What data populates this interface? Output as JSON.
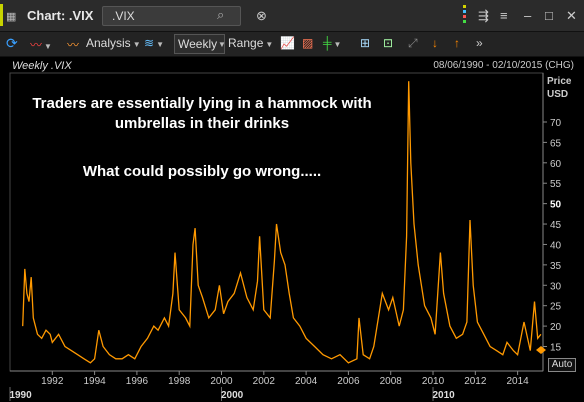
{
  "window": {
    "title": "Chart: .VIX",
    "symbol_value": ".VIX"
  },
  "toolbar": {
    "analysis_label": "Analysis",
    "interval_label": "Weekly",
    "range_label": "Range"
  },
  "chart": {
    "label": "Weekly .VIX",
    "date_range": "08/06/1990 - 02/10/2015 (CHG)",
    "axis_title_line1": "Price",
    "axis_title_line2": "USD",
    "annotation_line1": "Traders are essentially lying in a hammock with",
    "annotation_line2": "umbrellas in their drinks",
    "annotation_line3": "What could possibly go wrong.....",
    "auto_label": "Auto",
    "line_color": "#ff9900"
  },
  "chart_data": {
    "type": "line",
    "series": [
      {
        "name": ".VIX",
        "x": [
          1990.6,
          1990.7,
          1990.8,
          1990.9,
          1991.0,
          1991.1,
          1991.3,
          1991.5,
          1991.7,
          1991.9,
          1992.0,
          1992.3,
          1992.6,
          1992.9,
          1993.2,
          1993.5,
          1993.8,
          1994.0,
          1994.2,
          1994.4,
          1994.7,
          1995.0,
          1995.3,
          1995.6,
          1995.9,
          1996.2,
          1996.5,
          1996.8,
          1997.0,
          1997.3,
          1997.5,
          1997.7,
          1997.8,
          1998.0,
          1998.3,
          1998.5,
          1998.65,
          1998.75,
          1998.9,
          1999.1,
          1999.4,
          1999.7,
          1999.9,
          2000.1,
          2000.3,
          2000.6,
          2000.9,
          2001.2,
          2001.5,
          2001.7,
          2001.8,
          2002.0,
          2002.3,
          2002.5,
          2002.6,
          2002.8,
          2003.0,
          2003.2,
          2003.4,
          2003.7,
          2004.0,
          2004.4,
          2004.8,
          2005.2,
          2005.6,
          2006.0,
          2006.4,
          2006.5,
          2006.7,
          2007.0,
          2007.2,
          2007.6,
          2007.9,
          2008.1,
          2008.4,
          2008.6,
          2008.75,
          2008.85,
          2008.95,
          2009.1,
          2009.3,
          2009.6,
          2009.9,
          2010.1,
          2010.35,
          2010.5,
          2010.8,
          2011.1,
          2011.4,
          2011.6,
          2011.75,
          2011.9,
          2012.1,
          2012.4,
          2012.7,
          2013.0,
          2013.3,
          2013.5,
          2013.8,
          2014.0,
          2014.3,
          2014.6,
          2014.8,
          2014.95,
          2015.1
        ],
        "values": [
          20,
          34,
          28,
          26,
          32,
          22,
          18,
          17,
          19,
          18,
          16,
          18,
          15,
          14,
          13,
          12,
          11,
          12,
          19,
          15,
          13,
          12,
          12,
          13,
          12,
          15,
          17,
          20,
          19,
          22,
          20,
          28,
          38,
          24,
          22,
          20,
          40,
          44,
          30,
          27,
          22,
          24,
          30,
          23,
          26,
          28,
          33,
          27,
          24,
          31,
          42,
          24,
          22,
          36,
          45,
          38,
          35,
          28,
          22,
          20,
          17,
          15,
          13,
          12,
          13,
          11,
          12,
          22,
          13,
          12,
          15,
          28,
          24,
          27,
          20,
          24,
          42,
          80,
          60,
          45,
          35,
          25,
          22,
          18,
          38,
          28,
          20,
          17,
          18,
          21,
          46,
          30,
          21,
          18,
          15,
          14,
          13,
          16,
          14,
          13,
          21,
          14,
          26,
          17,
          18
        ]
      }
    ],
    "xlim": [
      1990.0,
      2015.2
    ],
    "ylim": [
      9,
      82
    ],
    "x_tick_labels": [
      "1992",
      "1994",
      "1996",
      "1998",
      "2000",
      "2002",
      "2004",
      "2006",
      "2008",
      "2010",
      "2012",
      "2014"
    ],
    "x_tick_values": [
      1992,
      1994,
      1996,
      1998,
      2000,
      2002,
      2004,
      2006,
      2008,
      2010,
      2012,
      2014
    ],
    "x_major_labels": [
      "1990",
      "2000",
      "2010"
    ],
    "x_major_values": [
      1990.5,
      2000.5,
      2010.5
    ],
    "y_tick_labels": [
      "15",
      "20",
      "25",
      "30",
      "35",
      "40",
      "45",
      "50",
      "55",
      "60",
      "65",
      "70"
    ],
    "y_tick_values": [
      15,
      20,
      25,
      30,
      35,
      40,
      45,
      50,
      55,
      60,
      65,
      70
    ],
    "y_highlight": [
      "50"
    ],
    "grid": false
  }
}
